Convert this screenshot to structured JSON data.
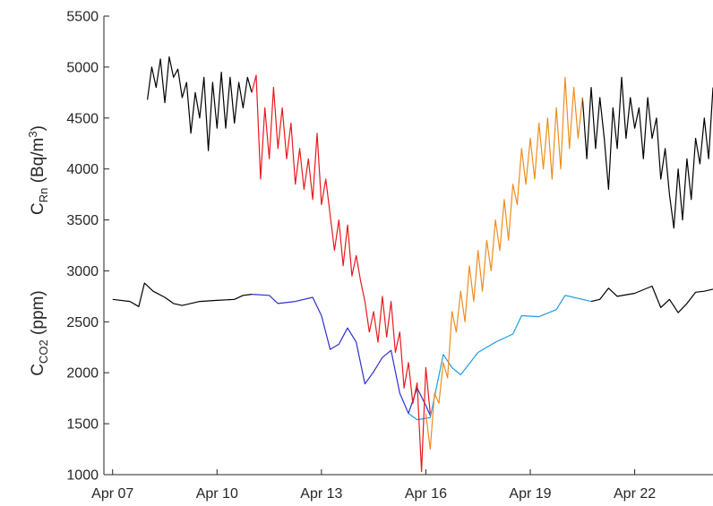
{
  "chart_data": {
    "type": "line",
    "title": "",
    "xlabel": "",
    "x_ticks": [
      "Apr 07",
      "Apr 10",
      "Apr 13",
      "Apr 16",
      "Apr 19",
      "Apr 22"
    ],
    "y_ticks": [
      1000,
      1500,
      2000,
      2500,
      3000,
      3500,
      4000,
      4500,
      5000,
      5500
    ],
    "ylim": [
      1000,
      5500
    ],
    "xlim": [
      "Apr 06 18:00",
      "Apr 24 06:00"
    ],
    "grid": false,
    "legend": "none",
    "ylabels": {
      "rn": {
        "base": "C",
        "sub": "Rn",
        "rest": " (Bq/m",
        "sup": "3",
        "end": ")"
      },
      "co2": {
        "base": "C",
        "sub": "CO2",
        "rest": " (ppm)"
      }
    },
    "series": [
      {
        "color": "#000000",
        "points": [
          [
            "Apr 07 00:00",
            2720
          ],
          [
            "Apr 07 12:00",
            2700
          ],
          [
            "Apr 07 18:00",
            2650
          ],
          [
            "Apr 07 22:00",
            2880
          ],
          [
            "Apr 08 04:00",
            2800
          ],
          [
            "Apr 08 12:00",
            2740
          ],
          [
            "Apr 08 18:00",
            2680
          ],
          [
            "Apr 09 00:00",
            2660
          ],
          [
            "Apr 09 12:00",
            2700
          ],
          [
            "Apr 10 00:00",
            2710
          ],
          [
            "Apr 10 12:00",
            2720
          ],
          [
            "Apr 10 18:00",
            2760
          ],
          [
            "Apr 11 00:00",
            2770
          ]
        ]
      },
      {
        "color": "#000000",
        "points": [
          [
            "Apr 20 18:00",
            2700
          ],
          [
            "Apr 21 00:00",
            2720
          ],
          [
            "Apr 21 06:00",
            2830
          ],
          [
            "Apr 21 12:00",
            2750
          ],
          [
            "Apr 22 00:00",
            2780
          ],
          [
            "Apr 22 12:00",
            2850
          ],
          [
            "Apr 22 18:00",
            2640
          ],
          [
            "Apr 23 00:00",
            2720
          ],
          [
            "Apr 23 06:00",
            2590
          ],
          [
            "Apr 23 12:00",
            2680
          ],
          [
            "Apr 23 18:00",
            2790
          ],
          [
            "Apr 24 00:00",
            2800
          ],
          [
            "Apr 24 06:00",
            2820
          ]
        ]
      },
      {
        "color": "#2e2fd0",
        "points": [
          [
            "Apr 11 00:00",
            2770
          ],
          [
            "Apr 11 12:00",
            2760
          ],
          [
            "Apr 11 18:00",
            2680
          ],
          [
            "Apr 12 06:00",
            2700
          ],
          [
            "Apr 12 18:00",
            2740
          ],
          [
            "Apr 13 00:00",
            2560
          ],
          [
            "Apr 13 06:00",
            2230
          ],
          [
            "Apr 13 12:00",
            2280
          ],
          [
            "Apr 13 18:00",
            2440
          ],
          [
            "Apr 14 00:00",
            2300
          ],
          [
            "Apr 14 06:00",
            1890
          ],
          [
            "Apr 14 12:00",
            2010
          ],
          [
            "Apr 14 18:00",
            2150
          ],
          [
            "Apr 15 00:00",
            2220
          ],
          [
            "Apr 15 06:00",
            1800
          ],
          [
            "Apr 15 12:00",
            1600
          ],
          [
            "Apr 15 18:00",
            1850
          ],
          [
            "Apr 16 00:00",
            1680
          ],
          [
            "Apr 16 03:00",
            1580
          ]
        ]
      },
      {
        "color": "#1f9de0",
        "points": [
          [
            "Apr 15 12:00",
            1600
          ],
          [
            "Apr 15 18:00",
            1540
          ],
          [
            "Apr 16 03:00",
            1560
          ],
          [
            "Apr 16 12:00",
            2180
          ],
          [
            "Apr 16 18:00",
            2050
          ],
          [
            "Apr 17 00:00",
            1980
          ],
          [
            "Apr 17 12:00",
            2200
          ],
          [
            "Apr 18 00:00",
            2300
          ],
          [
            "Apr 18 12:00",
            2380
          ],
          [
            "Apr 18 18:00",
            2560
          ],
          [
            "Apr 19 06:00",
            2550
          ],
          [
            "Apr 19 18:00",
            2620
          ],
          [
            "Apr 20 00:00",
            2760
          ],
          [
            "Apr 20 18:00",
            2700
          ]
        ]
      },
      {
        "color": "#000000",
        "points": [
          [
            "Apr 08 00:00",
            4680
          ],
          [
            "Apr 08 03:00",
            5000
          ],
          [
            "Apr 08 06:00",
            4800
          ],
          [
            "Apr 08 09:00",
            5080
          ],
          [
            "Apr 08 12:00",
            4650
          ],
          [
            "Apr 08 15:00",
            5100
          ],
          [
            "Apr 08 18:00",
            4900
          ],
          [
            "Apr 08 21:00",
            4980
          ],
          [
            "Apr 09 00:00",
            4700
          ],
          [
            "Apr 09 03:00",
            4850
          ],
          [
            "Apr 09 06:00",
            4350
          ],
          [
            "Apr 09 09:00",
            4750
          ],
          [
            "Apr 09 12:00",
            4500
          ],
          [
            "Apr 09 15:00",
            4900
          ],
          [
            "Apr 09 18:00",
            4180
          ],
          [
            "Apr 09 21:00",
            4850
          ],
          [
            "Apr 10 00:00",
            4400
          ],
          [
            "Apr 10 03:00",
            4950
          ],
          [
            "Apr 10 06:00",
            4400
          ],
          [
            "Apr 10 09:00",
            4900
          ],
          [
            "Apr 10 12:00",
            4450
          ],
          [
            "Apr 10 15:00",
            4850
          ],
          [
            "Apr 10 18:00",
            4600
          ],
          [
            "Apr 10 21:00",
            4900
          ],
          [
            "Apr 11 00:00",
            4750
          ]
        ]
      },
      {
        "color": "#000000",
        "points": [
          [
            "Apr 20 12:00",
            4700
          ],
          [
            "Apr 20 15:00",
            4100
          ],
          [
            "Apr 20 18:00",
            4800
          ],
          [
            "Apr 20 21:00",
            4200
          ],
          [
            "Apr 21 00:00",
            4700
          ],
          [
            "Apr 21 03:00",
            4300
          ],
          [
            "Apr 21 06:00",
            3800
          ],
          [
            "Apr 21 09:00",
            4600
          ],
          [
            "Apr 21 12:00",
            4200
          ],
          [
            "Apr 21 15:00",
            4900
          ],
          [
            "Apr 21 18:00",
            4300
          ],
          [
            "Apr 21 21:00",
            4700
          ],
          [
            "Apr 22 00:00",
            4400
          ],
          [
            "Apr 22 03:00",
            4600
          ],
          [
            "Apr 22 06:00",
            4100
          ],
          [
            "Apr 22 09:00",
            4700
          ],
          [
            "Apr 22 12:00",
            4300
          ],
          [
            "Apr 22 15:00",
            4500
          ],
          [
            "Apr 22 18:00",
            3900
          ],
          [
            "Apr 22 21:00",
            4200
          ],
          [
            "Apr 23 00:00",
            3750
          ],
          [
            "Apr 23 03:00",
            3420
          ],
          [
            "Apr 23 06:00",
            4000
          ],
          [
            "Apr 23 09:00",
            3500
          ],
          [
            "Apr 23 12:00",
            4100
          ],
          [
            "Apr 23 15:00",
            3700
          ],
          [
            "Apr 23 18:00",
            4300
          ],
          [
            "Apr 23 21:00",
            4050
          ],
          [
            "Apr 24 00:00",
            4500
          ],
          [
            "Apr 24 03:00",
            4100
          ],
          [
            "Apr 24 06:00",
            4800
          ]
        ]
      },
      {
        "color": "#e8191f",
        "points": [
          [
            "Apr 11 00:00",
            4750
          ],
          [
            "Apr 11 03:00",
            4920
          ],
          [
            "Apr 11 06:00",
            3900
          ],
          [
            "Apr 11 09:00",
            4600
          ],
          [
            "Apr 11 12:00",
            4100
          ],
          [
            "Apr 11 15:00",
            4800
          ],
          [
            "Apr 11 18:00",
            4200
          ],
          [
            "Apr 11 21:00",
            4600
          ],
          [
            "Apr 12 00:00",
            4100
          ],
          [
            "Apr 12 03:00",
            4450
          ],
          [
            "Apr 12 06:00",
            3850
          ],
          [
            "Apr 12 09:00",
            4200
          ],
          [
            "Apr 12 12:00",
            3800
          ],
          [
            "Apr 12 15:00",
            4100
          ],
          [
            "Apr 12 18:00",
            3700
          ],
          [
            "Apr 12 21:00",
            4350
          ],
          [
            "Apr 13 00:00",
            3650
          ],
          [
            "Apr 13 03:00",
            3900
          ],
          [
            "Apr 13 06:00",
            3550
          ],
          [
            "Apr 13 09:00",
            3200
          ],
          [
            "Apr 13 12:00",
            3500
          ],
          [
            "Apr 13 15:00",
            3050
          ],
          [
            "Apr 13 18:00",
            3450
          ],
          [
            "Apr 13 21:00",
            2950
          ],
          [
            "Apr 14 00:00",
            3150
          ],
          [
            "Apr 14 03:00",
            2900
          ],
          [
            "Apr 14 06:00",
            2700
          ],
          [
            "Apr 14 09:00",
            2400
          ],
          [
            "Apr 14 12:00",
            2600
          ],
          [
            "Apr 14 15:00",
            2300
          ],
          [
            "Apr 14 18:00",
            2750
          ],
          [
            "Apr 14 21:00",
            2350
          ],
          [
            "Apr 15 00:00",
            2700
          ],
          [
            "Apr 15 03:00",
            2200
          ],
          [
            "Apr 15 06:00",
            2400
          ],
          [
            "Apr 15 09:00",
            1850
          ],
          [
            "Apr 15 12:00",
            2100
          ],
          [
            "Apr 15 15:00",
            1700
          ],
          [
            "Apr 15 18:00",
            1900
          ],
          [
            "Apr 15 21:00",
            1030
          ],
          [
            "Apr 16 00:00",
            2050
          ],
          [
            "Apr 16 03:00",
            1600
          ]
        ]
      },
      {
        "color": "#f08c1d",
        "points": [
          [
            "Apr 16 00:00",
            1600
          ],
          [
            "Apr 16 03:00",
            1250
          ],
          [
            "Apr 16 06:00",
            1800
          ],
          [
            "Apr 16 09:00",
            1700
          ],
          [
            "Apr 16 12:00",
            2100
          ],
          [
            "Apr 16 15:00",
            1950
          ],
          [
            "Apr 16 18:00",
            2600
          ],
          [
            "Apr 16 21:00",
            2400
          ],
          [
            "Apr 17 00:00",
            2800
          ],
          [
            "Apr 17 03:00",
            2500
          ],
          [
            "Apr 17 06:00",
            3050
          ],
          [
            "Apr 17 09:00",
            2700
          ],
          [
            "Apr 17 12:00",
            3200
          ],
          [
            "Apr 17 15:00",
            2800
          ],
          [
            "Apr 17 18:00",
            3300
          ],
          [
            "Apr 17 21:00",
            3000
          ],
          [
            "Apr 18 00:00",
            3500
          ],
          [
            "Apr 18 03:00",
            3200
          ],
          [
            "Apr 18 06:00",
            3700
          ],
          [
            "Apr 18 09:00",
            3300
          ],
          [
            "Apr 18 12:00",
            3850
          ],
          [
            "Apr 18 15:00",
            3650
          ],
          [
            "Apr 18 18:00",
            4200
          ],
          [
            "Apr 18 21:00",
            3850
          ],
          [
            "Apr 19 00:00",
            4300
          ],
          [
            "Apr 19 03:00",
            3900
          ],
          [
            "Apr 19 06:00",
            4450
          ],
          [
            "Apr 19 09:00",
            4000
          ],
          [
            "Apr 19 12:00",
            4500
          ],
          [
            "Apr 19 15:00",
            3900
          ],
          [
            "Apr 19 18:00",
            4600
          ],
          [
            "Apr 19 21:00",
            4000
          ],
          [
            "Apr 20 00:00",
            4900
          ],
          [
            "Apr 20 03:00",
            4200
          ],
          [
            "Apr 20 06:00",
            4800
          ],
          [
            "Apr 20 09:00",
            4300
          ],
          [
            "Apr 20 12:00",
            4700
          ]
        ]
      }
    ]
  }
}
